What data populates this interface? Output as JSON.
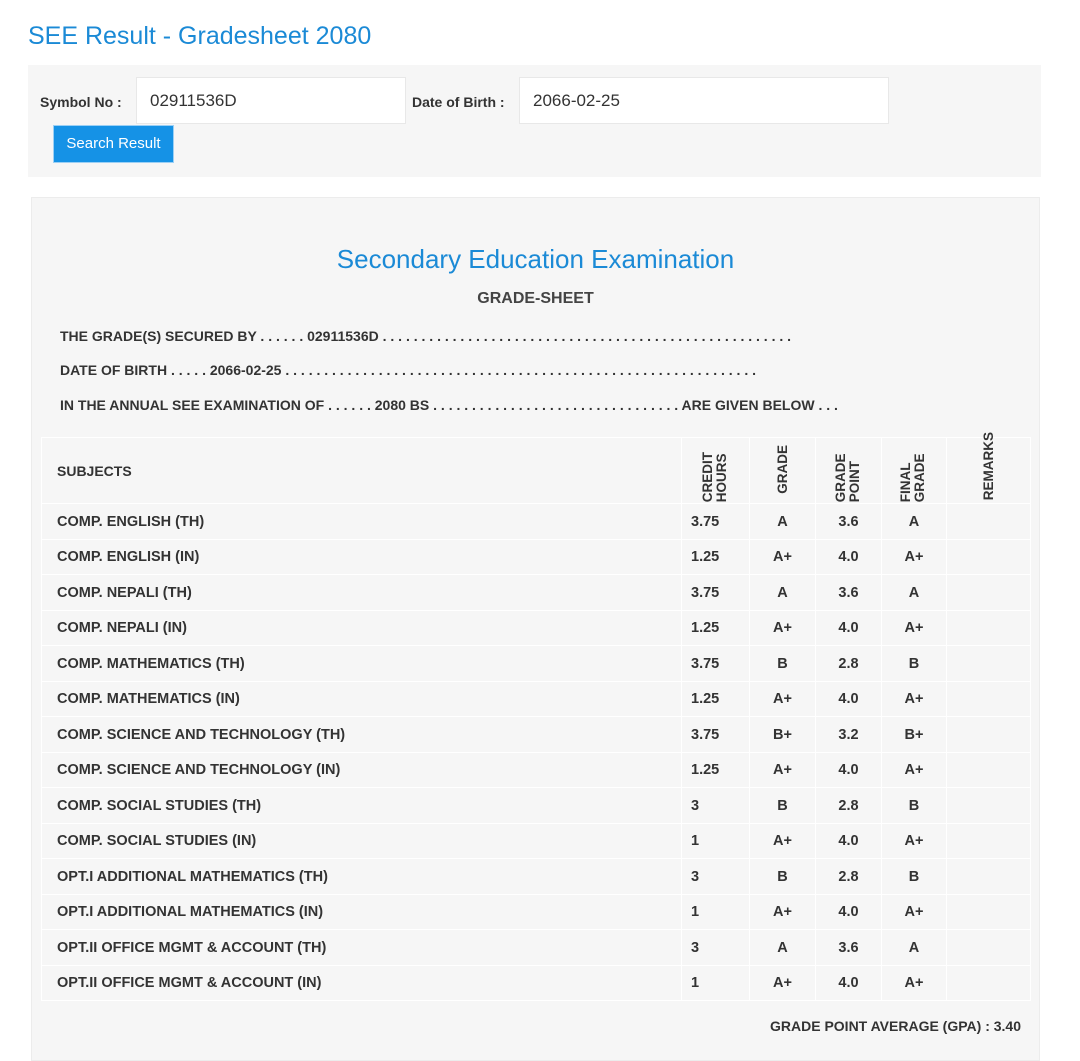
{
  "title": "SEE Result - Gradesheet 2080",
  "search": {
    "symbol_label": "Symbol No :",
    "symbol_value": "02911536D",
    "dob_label": "Date of Birth :",
    "dob_value": "2066-02-25",
    "button": "Search Result"
  },
  "sheet": {
    "heading": "Secondary Education Examination",
    "subheading": "GRADE-SHEET",
    "line1": "THE GRADE(S) SECURED BY . . . . . . 02911536D . . . . . . . . . . . . . . . . . . . . . . . . . . . . . . . . . . . . . . . . . . . . . . . . . . . . .",
    "line2": "DATE OF BIRTH . . . . . 2066-02-25 . . . . . . . . . . . . . . . . . . . . . . . . . . . . . . . . . . . . . . . . . . . . . . . . . . . . . . . . . . . . .",
    "line3": "IN THE ANNUAL SEE EXAMINATION OF . . . . . . 2080 BS . . . . . . . . . . . . . . . . . . . . . . . . . . . . . . . . ARE GIVEN BELOW . . .",
    "columns": [
      "SUBJECTS",
      "CREDIT HOURS",
      "GRADE",
      "GRADE POINT",
      "FINAL GRADE",
      "REMARKS"
    ],
    "rows": [
      [
        "COMP. ENGLISH (TH)",
        "3.75",
        "A",
        "3.6",
        "A",
        ""
      ],
      [
        "COMP. ENGLISH (IN)",
        "1.25",
        "A+",
        "4.0",
        "A+",
        ""
      ],
      [
        "COMP. NEPALI (TH)",
        "3.75",
        "A",
        "3.6",
        "A",
        ""
      ],
      [
        "COMP. NEPALI (IN)",
        "1.25",
        "A+",
        "4.0",
        "A+",
        ""
      ],
      [
        "COMP. MATHEMATICS (TH)",
        "3.75",
        "B",
        "2.8",
        "B",
        ""
      ],
      [
        "COMP. MATHEMATICS (IN)",
        "1.25",
        "A+",
        "4.0",
        "A+",
        ""
      ],
      [
        "COMP. SCIENCE AND TECHNOLOGY (TH)",
        "3.75",
        "B+",
        "3.2",
        "B+",
        ""
      ],
      [
        "COMP. SCIENCE AND TECHNOLOGY (IN)",
        "1.25",
        "A+",
        "4.0",
        "A+",
        ""
      ],
      [
        "COMP. SOCIAL STUDIES (TH)",
        "3",
        "B",
        "2.8",
        "B",
        ""
      ],
      [
        "COMP. SOCIAL STUDIES (IN)",
        "1",
        "A+",
        "4.0",
        "A+",
        ""
      ],
      [
        "OPT.I ADDITIONAL MATHEMATICS (TH)",
        "3",
        "B",
        "2.8",
        "B",
        ""
      ],
      [
        "OPT.I ADDITIONAL MATHEMATICS (IN)",
        "1",
        "A+",
        "4.0",
        "A+",
        ""
      ],
      [
        "OPT.II OFFICE MGMT & ACCOUNT (TH)",
        "3",
        "A",
        "3.6",
        "A",
        ""
      ],
      [
        "OPT.II OFFICE MGMT & ACCOUNT (IN)",
        "1",
        "A+",
        "4.0",
        "A+",
        ""
      ]
    ],
    "gpa": "GRADE POINT AVERAGE (GPA) : 3.40"
  },
  "colors": {
    "accent": "#1b8ad6",
    "button": "#1592e6"
  }
}
